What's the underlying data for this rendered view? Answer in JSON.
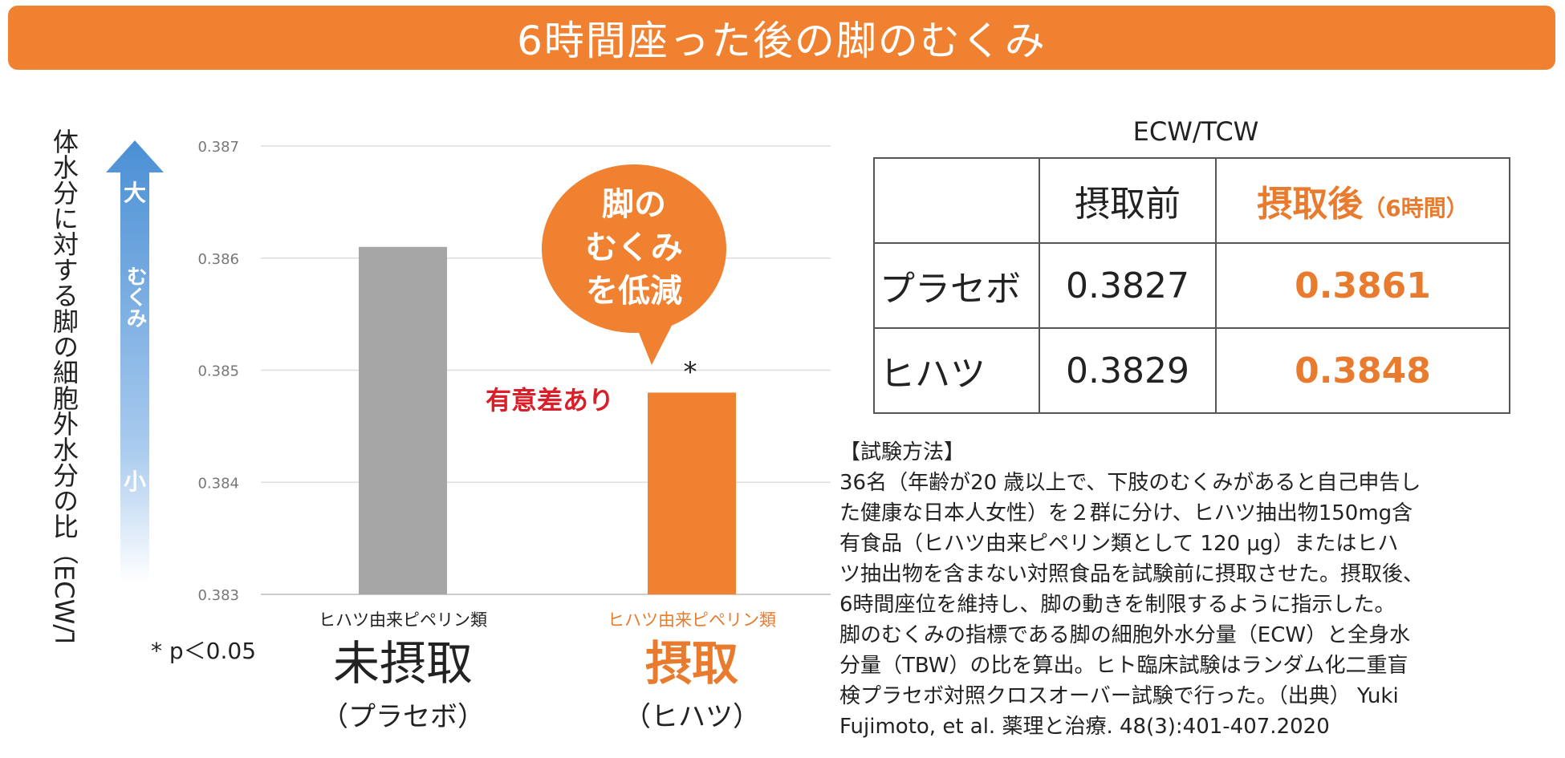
{
  "title": "6時間座った後の脚のむくみ",
  "y_axis_label": "体水分に対する脚の細胞外水分の比（ECW/TCW）",
  "arrow": {
    "top_label": "大",
    "middle_label": "むくみ",
    "bottom_label": "小"
  },
  "speech_bubble": [
    "脚の",
    "むくみ",
    "を低減"
  ],
  "significance_label": "有意差あり",
  "asterisk": "*",
  "p_note": "* p＜0.05",
  "chart_data": {
    "type": "bar",
    "categories": [
      "未摂取",
      "摂取"
    ],
    "category_sublabel": [
      "ヒハツ由来ピペリン類",
      "ヒハツ由来ピペリン類"
    ],
    "category_paren": [
      "（プラセボ）",
      "（ヒハツ）"
    ],
    "values": [
      0.3861,
      0.3848
    ],
    "bar_colors": [
      "#a6a6a6",
      "#ef8130"
    ],
    "ylim": [
      0.383,
      0.387
    ],
    "yticks": [
      "0.387",
      "0.386",
      "0.385",
      "0.384",
      "0.383"
    ],
    "ytick_values": [
      0.387,
      0.386,
      0.385,
      0.384,
      0.383
    ],
    "grid": true
  },
  "table": {
    "title": "ECW/TCW",
    "headers": [
      "",
      "摂取前",
      "摂取後",
      "（6時間）"
    ],
    "rows": [
      {
        "label": "プラセボ",
        "before": "0.3827",
        "after": "0.3861"
      },
      {
        "label": "ヒハツ",
        "before": "0.3829",
        "after": "0.3848"
      }
    ]
  },
  "method": {
    "heading": "【試験方法】",
    "lines": [
      "36名（年齢が20 歳以上で、下肢のむくみがあると自己申告し",
      "た健康な日本人女性）を２群に分け、ヒハツ抽出物150mg含",
      "有食品（ヒハツ由来ピペリン類として 120 μg）またはヒハ",
      "ツ抽出物を含まない対照食品を試験前に摂取させた。摂取後、",
      "6時間座位を維持し、脚の動きを制限するように指示した。",
      "脚のむくみの指標である脚の細胞外水分量（ECW）と全身水",
      "分量（TBW）の比を算出。ヒト臨床試験はランダム化二重盲",
      "検プラセボ対照クロスオーバー試験で行った。（出典） Yuki",
      "Fujimoto,  et al. 薬理と治療. 48(3):401-407.2020"
    ]
  },
  "colors": {
    "accent": "#ef8130",
    "significance": "#d9202a",
    "arrow_top": "#4a8fd4"
  }
}
